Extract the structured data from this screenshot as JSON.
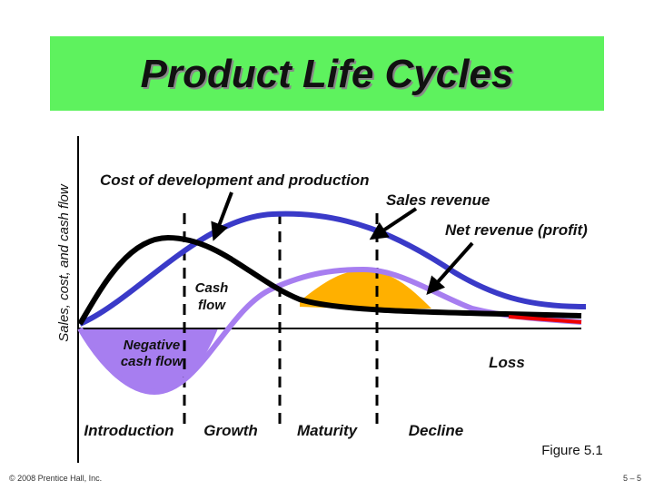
{
  "header": {
    "title": "Product Life Cycles"
  },
  "axis": {
    "y_label": "Sales, cost, and cash flow"
  },
  "annotations": {
    "cost": "Cost of development and production",
    "sales": "Sales revenue",
    "net": "Net revenue (profit)",
    "cash_flow": [
      "Cash",
      "flow"
    ],
    "negative": [
      "Negative",
      "cash flow"
    ],
    "loss": "Loss"
  },
  "phases": [
    "Introduction",
    "Growth",
    "Maturity",
    "Decline"
  ],
  "figure": "Figure 5.1",
  "footer": {
    "copyright": "© 2008 Prentice Hall, Inc.",
    "page": "5 – 5"
  }
}
